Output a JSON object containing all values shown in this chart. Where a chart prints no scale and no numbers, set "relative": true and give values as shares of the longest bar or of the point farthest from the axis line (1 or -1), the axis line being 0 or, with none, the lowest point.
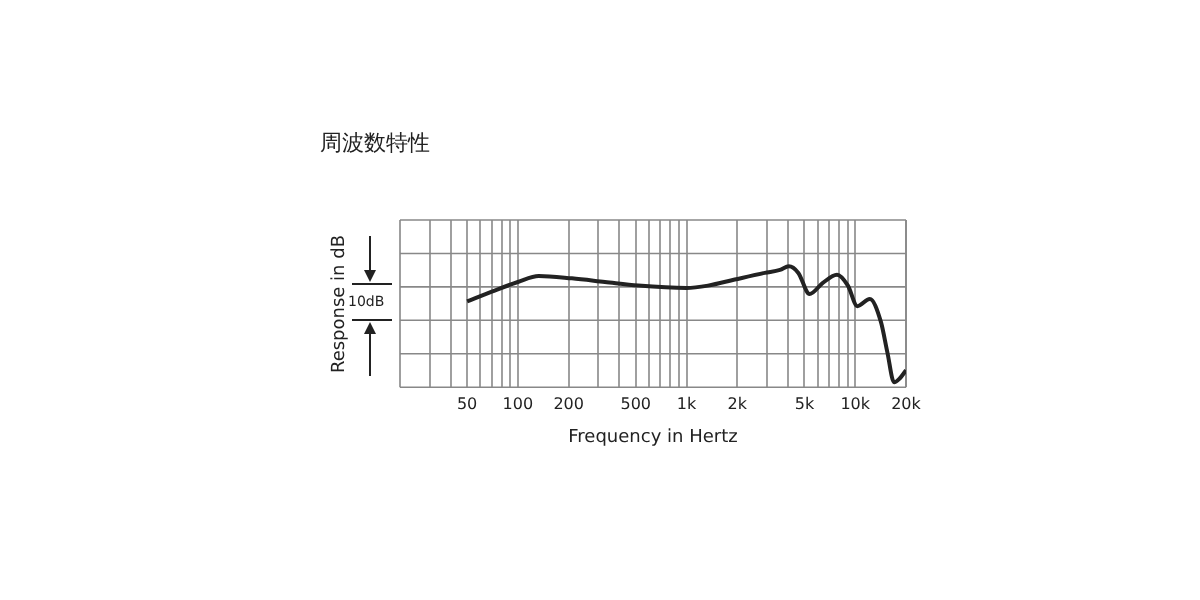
{
  "chart_data": {
    "type": "line",
    "title": "周波数特性",
    "xlabel": "Frequency in Hertz",
    "ylabel": "Response in dB",
    "annotations": [
      "10dB"
    ],
    "relative": true,
    "log": "x",
    "grid": true,
    "legend": false,
    "marker": "none",
    "line_style": "solid",
    "xlim": [
      20,
      20000
    ],
    "xticks": [
      {
        "value": 30,
        "label": null
      },
      {
        "value": 40,
        "label": null
      },
      50,
      {
        "value": 60,
        "label": null
      },
      {
        "value": 70,
        "label": null
      },
      {
        "value": 80,
        "label": null
      },
      {
        "value": 90,
        "label": null
      },
      100,
      200,
      {
        "value": 300,
        "label": null
      },
      {
        "value": 400,
        "label": null
      },
      500,
      {
        "value": 600,
        "label": null
      },
      {
        "value": 700,
        "label": null
      },
      {
        "value": 800,
        "label": null
      },
      {
        "value": 900,
        "label": null
      },
      {
        "value": 1000,
        "label": "1k"
      },
      {
        "value": 2000,
        "label": "2k"
      },
      {
        "value": 3000,
        "label": null
      },
      {
        "value": 4000,
        "label": null
      },
      {
        "value": 5000,
        "label": "5k"
      },
      {
        "value": 6000,
        "label": null
      },
      {
        "value": 7000,
        "label": null
      },
      {
        "value": 8000,
        "label": null
      },
      {
        "value": 9000,
        "label": null
      },
      {
        "value": 10000,
        "label": "10k"
      },
      {
        "value": 20000,
        "label": "20k"
      }
    ],
    "x": [
      50,
      70,
      100,
      133,
      209,
      328,
      517,
      1000,
      1340,
      1930,
      2909,
      3580,
      4040,
      4600,
      5360,
      6400,
      7800,
      9050,
      10300,
      12200,
      14200,
      15500,
      17000,
      18300,
      20000
    ],
    "series": [
      {
        "color": "#222222",
        "values": [
          0.71,
          0.79,
          0.87,
          0.92,
          0.9,
          0.87,
          0.84,
          0.82,
          0.84,
          0.89,
          0.945,
          0.97,
          1.0,
          0.945,
          0.77,
          0.86,
          0.93,
          0.84,
          0.67,
          0.73,
          0.54,
          0.29,
          0.04,
          0.07,
          0.14
        ]
      }
    ]
  }
}
